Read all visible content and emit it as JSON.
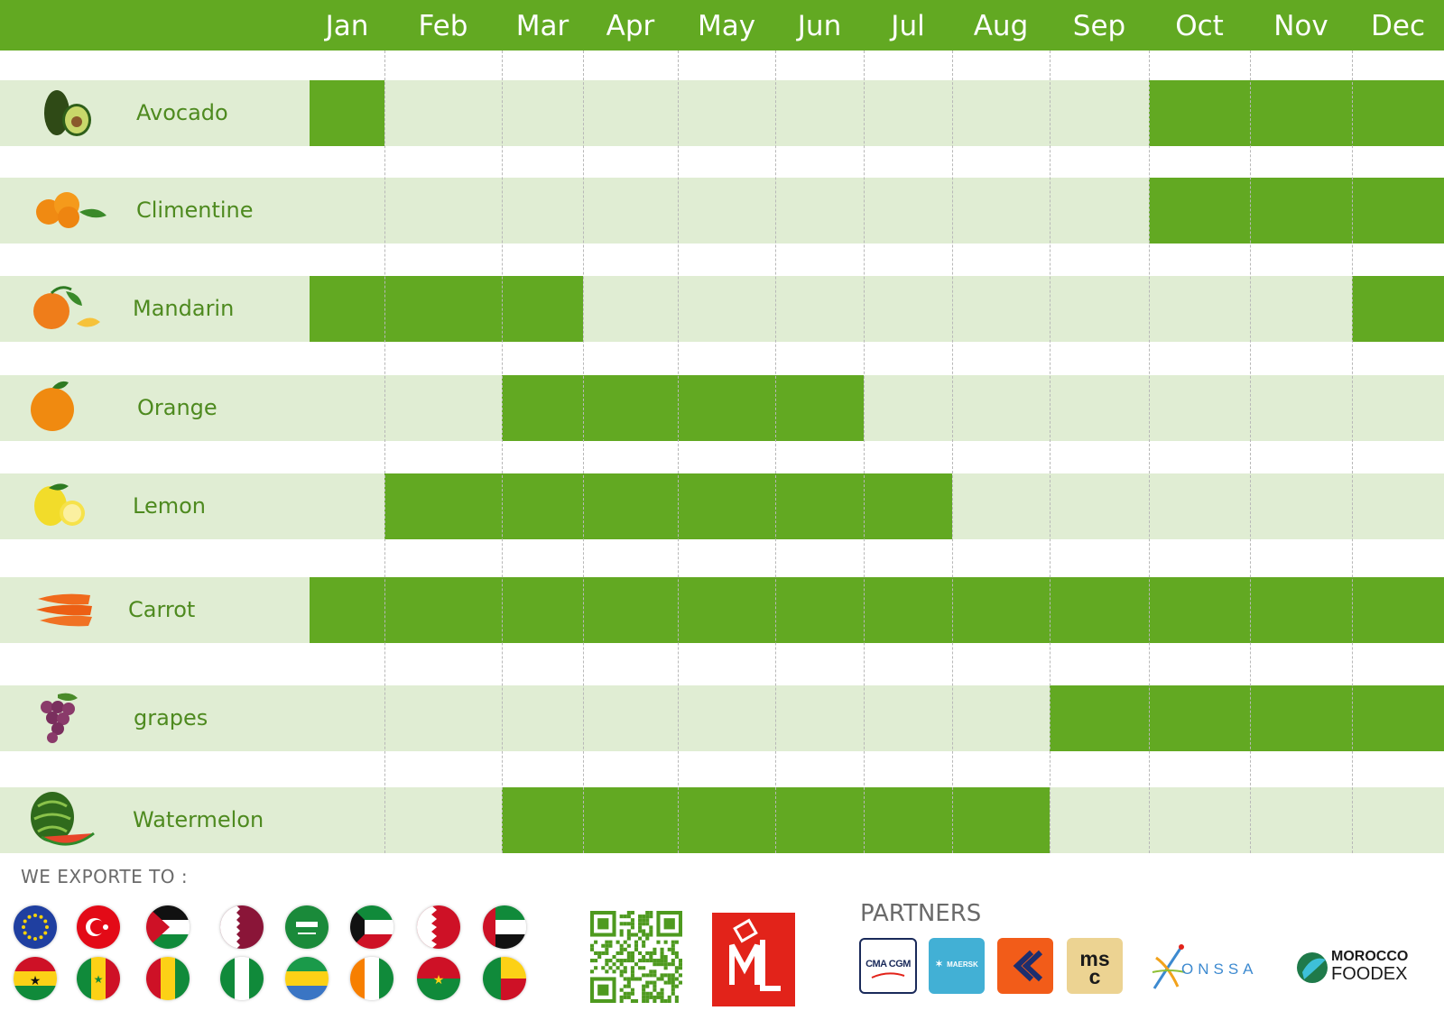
{
  "chart_data": {
    "type": "table",
    "months": [
      "Jan",
      "Feb",
      "Mar",
      "Apr",
      "May",
      "Jun",
      "Jul",
      "Aug",
      "Sep",
      "Oct",
      "Nov",
      "Dec"
    ],
    "series": [
      {
        "name": "Avocado",
        "active": [
          1,
          0,
          0,
          0,
          0,
          0,
          0,
          0,
          0,
          1,
          1,
          1
        ]
      },
      {
        "name": "Climentine",
        "active": [
          0,
          0,
          0,
          0,
          0,
          0,
          0,
          0,
          0,
          1,
          1,
          1
        ]
      },
      {
        "name": "Mandarin",
        "active": [
          1,
          1,
          1,
          0,
          0,
          0,
          0,
          0,
          0,
          0,
          0,
          1
        ]
      },
      {
        "name": "Orange",
        "active": [
          0,
          0,
          1,
          1,
          1,
          1,
          0,
          0,
          0,
          0,
          0,
          0
        ]
      },
      {
        "name": "Lemon",
        "active": [
          0,
          1,
          1,
          1,
          1,
          1,
          1,
          0,
          0,
          0,
          0,
          0
        ]
      },
      {
        "name": "Carrot",
        "active": [
          1,
          1,
          1,
          1,
          1,
          1,
          1,
          1,
          1,
          1,
          1,
          1
        ]
      },
      {
        "name": "grapes",
        "active": [
          0,
          0,
          0,
          0,
          0,
          0,
          0,
          0,
          1,
          1,
          1,
          1
        ]
      },
      {
        "name": "Watermelon",
        "active": [
          0,
          0,
          1,
          1,
          1,
          1,
          1,
          1,
          0,
          0,
          0,
          0
        ]
      }
    ],
    "colors": {
      "header": "#62a922",
      "active": "#62a922",
      "band": "#e0edd3",
      "label": "#4e8a1f"
    }
  },
  "footer": {
    "export_label": "WE EXPORTE TO :",
    "flags": [
      "eu-flag",
      "turkey-flag",
      "jordan-flag",
      "qatar-flag",
      "saudi-arabia-flag",
      "kuwait-flag",
      "bahrain-flag",
      "uae-flag",
      "ghana-flag",
      "senegal-flag",
      "guinea-flag",
      "nigeria-flag",
      "gabon-flag",
      "ivory-coast-flag",
      "burkina-faso-flag",
      "benin-flag"
    ],
    "partners_label": "PARTNERS",
    "partners": [
      "CMA CGM",
      "MAERSK",
      "msc",
      "ONSSA",
      "MOROCCO",
      "FOODEX"
    ]
  }
}
